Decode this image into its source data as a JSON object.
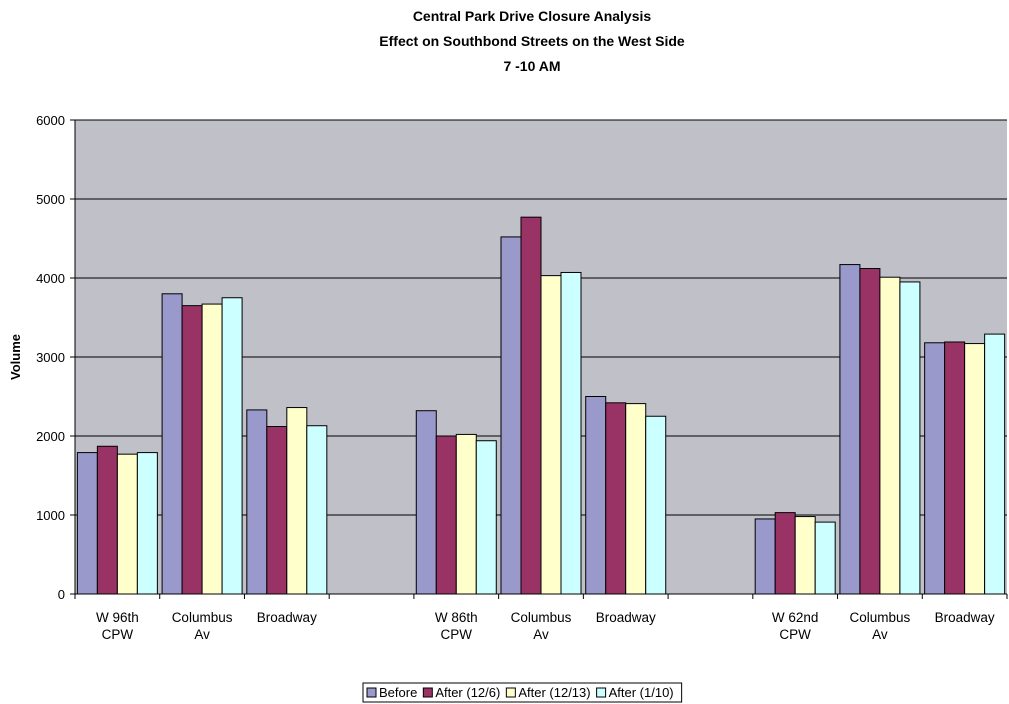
{
  "chart_data": {
    "type": "bar",
    "title_lines": [
      "Central Park Drive Closure Analysis",
      "Effect on Southbond Streets on the West Side",
      "7 -10 AM"
    ],
    "ylabel": "Volume",
    "xlabel": "",
    "ylim": [
      0,
      6000
    ],
    "yticks": [
      0,
      1000,
      2000,
      3000,
      4000,
      5000,
      6000
    ],
    "grid": true,
    "legend_position": "bottom",
    "plot_background": "#c0c0c8",
    "categories": [
      [
        "W 96th",
        "CPW"
      ],
      [
        "Columbus",
        "Av"
      ],
      [
        "Broadway"
      ],
      [],
      [
        "W 86th",
        "CPW"
      ],
      [
        "Columbus",
        "Av"
      ],
      [
        "Broadway"
      ],
      [],
      [
        "W 62nd",
        "CPW"
      ],
      [
        "Columbus",
        "Av"
      ],
      [
        "Broadway"
      ]
    ],
    "series": [
      {
        "name": "Before",
        "color": "#9999cc",
        "values": [
          1790,
          3800,
          2330,
          null,
          2320,
          4520,
          2500,
          null,
          950,
          4170,
          3180
        ]
      },
      {
        "name": "After (12/6)",
        "color": "#993366",
        "values": [
          1870,
          3650,
          2120,
          null,
          2000,
          4770,
          2420,
          null,
          1030,
          4120,
          3190
        ]
      },
      {
        "name": "After (12/13)",
        "color": "#ffffcc",
        "values": [
          1770,
          3670,
          2360,
          null,
          2020,
          4030,
          2410,
          null,
          980,
          4010,
          3170
        ]
      },
      {
        "name": "After (1/10)",
        "color": "#ccffff",
        "values": [
          1790,
          3750,
          2130,
          null,
          1940,
          4070,
          2250,
          null,
          910,
          3950,
          3290
        ]
      }
    ]
  }
}
